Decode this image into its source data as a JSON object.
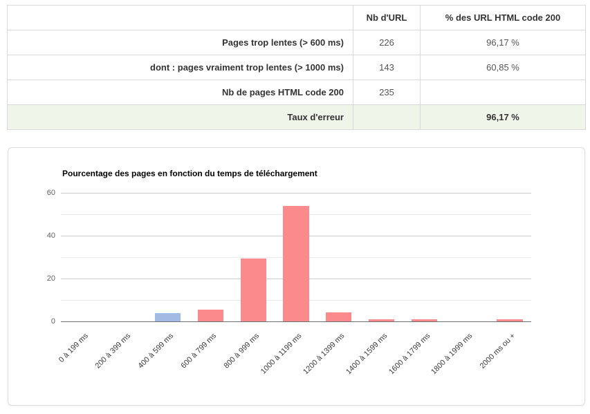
{
  "table": {
    "headers": [
      "",
      "Nb d'URL",
      "% des URL HTML code 200"
    ],
    "rows": [
      {
        "label": "Pages trop lentes (> 600 ms)",
        "nb_url": "226",
        "pct": "96,17 %",
        "highlight": false
      },
      {
        "label": "dont : pages vraiment trop lentes (> 1000 ms)",
        "nb_url": "143",
        "pct": "60,85 %",
        "highlight": false
      },
      {
        "label": "Nb de pages HTML code 200",
        "nb_url": "235",
        "pct": "",
        "highlight": false
      },
      {
        "label": "Taux d'erreur",
        "nb_url": "",
        "pct": "96,17 %",
        "highlight": true
      }
    ],
    "highlight_color": "#f0f5e9"
  },
  "chart_data": {
    "type": "bar",
    "title": "Pourcentage des pages en fonction du temps de téléchargement",
    "categories": [
      "0 à 199 ms",
      "200 à 399 ms",
      "400 à 599 ms",
      "600 à 799 ms",
      "800 à 999 ms",
      "1000 à 1199 ms",
      "1200 à 1399 ms",
      "1400 à 1599 ms",
      "1600 à 1799 ms",
      "1800 à 1999 ms",
      "2000 ms ou +"
    ],
    "values": [
      0,
      0,
      3.8,
      5.5,
      29.4,
      54,
      4.3,
      0.9,
      0.9,
      0,
      0.9
    ],
    "bar_colors": [
      "#fb8a8d",
      "#fb8a8d",
      "#a3bbe4",
      "#fb8a8d",
      "#fb8a8d",
      "#fb8a8d",
      "#fb8a8d",
      "#fb8a8d",
      "#fb8a8d",
      "#fb8a8d",
      "#fb8a8d"
    ],
    "default_bar_color": "#fb8a8d",
    "highlight_bar": {
      "index": 2,
      "color": "#a3bbe4"
    },
    "xlabel": "",
    "ylabel": "",
    "ylim": [
      0,
      60
    ],
    "yticks": [
      0,
      20,
      40,
      60
    ],
    "gridline_step": 10,
    "grid": "on",
    "legend": "none",
    "xtick_rotation_deg": 45
  }
}
